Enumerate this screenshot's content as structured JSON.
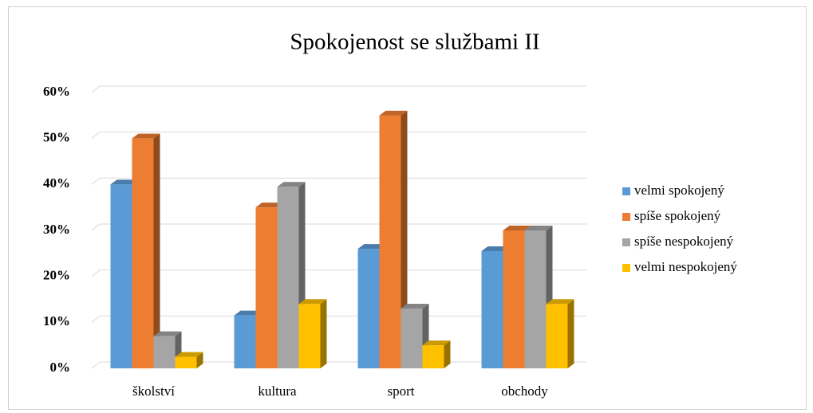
{
  "chart_data": {
    "type": "bar3d",
    "title": "Spokojenost se službami II",
    "categories": [
      "školství",
      "kultura",
      "sport",
      "obchody"
    ],
    "series": [
      {
        "name": "velmi spokojený",
        "color": "#5b9bd5",
        "values": [
          40,
          11.5,
          26,
          25.5
        ]
      },
      {
        "name": "spíše spokojený",
        "color": "#ed7d31",
        "values": [
          50,
          35,
          55,
          30
        ]
      },
      {
        "name": "spíše nespokojený",
        "color": "#a5a5a5",
        "values": [
          7,
          39.5,
          13,
          30
        ]
      },
      {
        "name": "velmi nespokojený",
        "color": "#ffc000",
        "values": [
          2.5,
          14,
          5,
          14
        ]
      }
    ],
    "ylim": [
      0,
      60
    ],
    "yticks": [
      {
        "value": 0,
        "label": "0%"
      },
      {
        "value": 10,
        "label": "10%"
      },
      {
        "value": 20,
        "label": "20%"
      },
      {
        "value": 30,
        "label": "30%"
      },
      {
        "value": 40,
        "label": "40%"
      },
      {
        "value": 50,
        "label": "50%"
      },
      {
        "value": 60,
        "label": "60%"
      }
    ],
    "grid": true,
    "legend": "right"
  }
}
